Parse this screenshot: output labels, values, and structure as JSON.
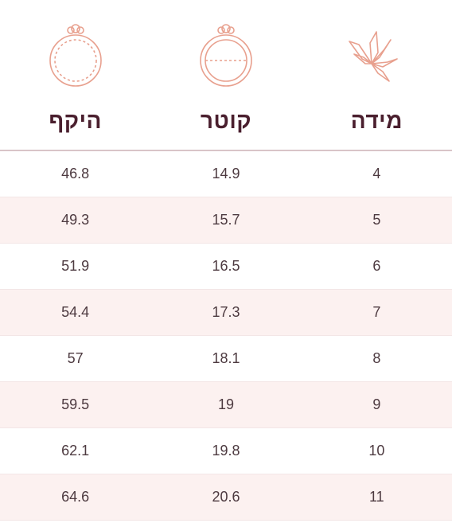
{
  "columns": [
    {
      "key": "size",
      "label": "מידה",
      "icon": "diamond-flower-icon"
    },
    {
      "key": "diameter",
      "label": "קוטר",
      "icon": "ring-diameter-icon"
    },
    {
      "key": "circumference",
      "label": "היקף",
      "icon": "ring-circumference-icon"
    }
  ],
  "rows": [
    {
      "size": "4",
      "diameter": "14.9",
      "circumference": "46.8"
    },
    {
      "size": "5",
      "diameter": "15.7",
      "circumference": "49.3"
    },
    {
      "size": "6",
      "diameter": "16.5",
      "circumference": "51.9"
    },
    {
      "size": "7",
      "diameter": "17.3",
      "circumference": "54.4"
    },
    {
      "size": "8",
      "diameter": "18.1",
      "circumference": "57"
    },
    {
      "size": "9",
      "diameter": "19",
      "circumference": "59.5"
    },
    {
      "size": "10",
      "diameter": "19.8",
      "circumference": "62.1"
    },
    {
      "size": "11",
      "diameter": "20.6",
      "circumference": "64.6"
    }
  ],
  "colors": {
    "title": "#4a1f2e",
    "icon_stroke": "#e8a08e",
    "divider": "#d9c4c8",
    "row_alt": "#fcf1f0",
    "cell_text": "#4d3a40"
  }
}
